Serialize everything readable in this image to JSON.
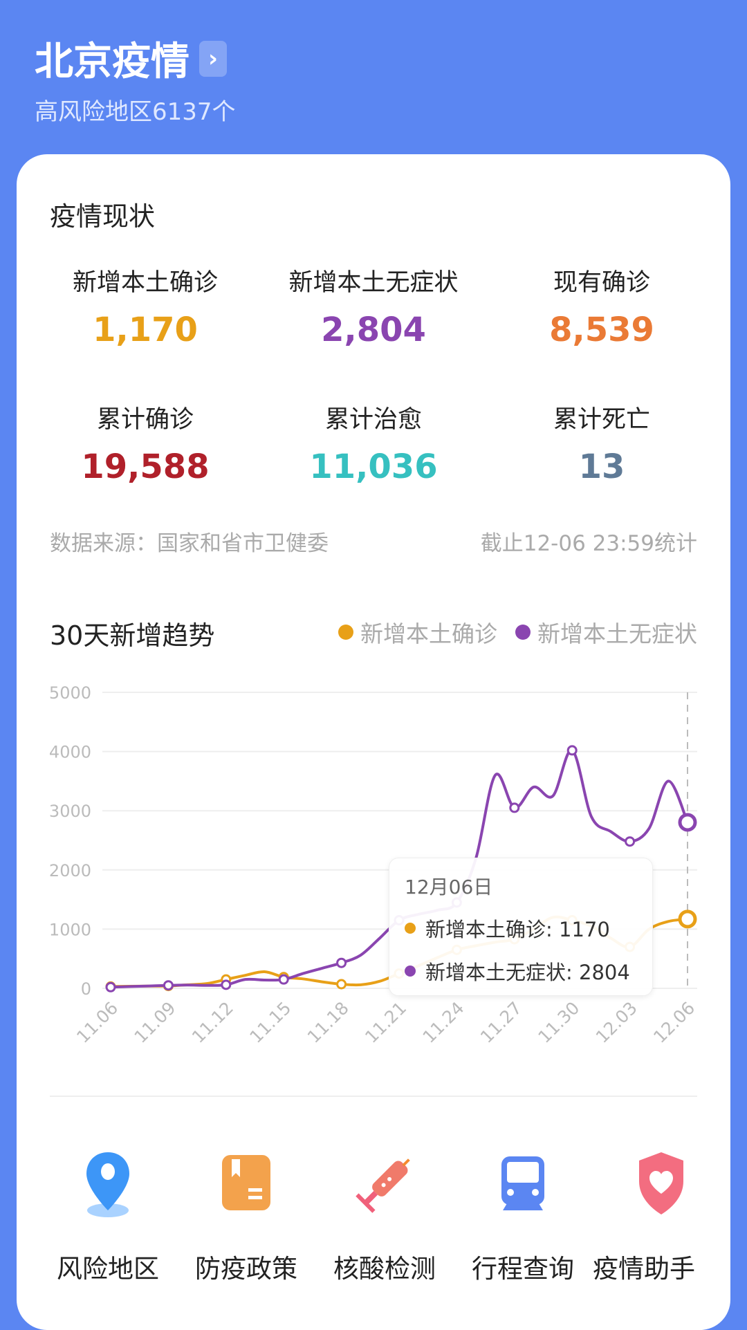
{
  "header": {
    "title": "北京疫情",
    "subtitle": "高风险地区6137个",
    "chevron_icon": "chevron-right-icon"
  },
  "status": {
    "title": "疫情现状",
    "stats": [
      {
        "label": "新增本土确诊",
        "value": "1,170",
        "color": "#e8a018"
      },
      {
        "label": "新增本土无症状",
        "value": "2,804",
        "color": "#8a45b0"
      },
      {
        "label": "现有确诊",
        "value": "8,539",
        "color": "#ea7a35"
      },
      {
        "label": "累计确诊",
        "value": "19,588",
        "color": "#b0202a"
      },
      {
        "label": "累计治愈",
        "value": "11,036",
        "color": "#36c0c0"
      },
      {
        "label": "累计死亡",
        "value": "13",
        "color": "#5f7a96"
      }
    ],
    "source": "数据来源：国家和省市卫健委",
    "updated": "截止12-06 23:59统计"
  },
  "chart_data": {
    "type": "line",
    "title": "30天新增趋势",
    "ylim": [
      0,
      5000
    ],
    "yticks": [
      "0",
      "1000",
      "2000",
      "3000",
      "4000",
      "5000"
    ],
    "xticks": [
      "11.06",
      "11.09",
      "11.12",
      "11.15",
      "11.18",
      "11.21",
      "11.24",
      "11.27",
      "11.30",
      "12.03",
      "12.06"
    ],
    "x": [
      "11.06",
      "11.07",
      "11.08",
      "11.09",
      "11.10",
      "11.11",
      "11.12",
      "11.13",
      "11.14",
      "11.15",
      "11.16",
      "11.17",
      "11.18",
      "11.19",
      "11.20",
      "11.21",
      "11.22",
      "11.23",
      "11.24",
      "11.25",
      "11.26",
      "11.27",
      "11.28",
      "11.29",
      "11.30",
      "12.01",
      "12.02",
      "12.03",
      "12.04",
      "12.05",
      "12.06"
    ],
    "legend_position": "top-right",
    "grid": true,
    "series": [
      {
        "name": "新增本土确诊",
        "color": "#e8a018",
        "values": [
          30,
          35,
          38,
          40,
          60,
          80,
          150,
          220,
          280,
          190,
          160,
          110,
          70,
          60,
          120,
          250,
          380,
          520,
          650,
          720,
          780,
          830,
          1000,
          1200,
          1150,
          1050,
          850,
          700,
          1000,
          1130,
          1170
        ]
      },
      {
        "name": "新增本土无症状",
        "color": "#8a45b0",
        "values": [
          20,
          30,
          40,
          50,
          55,
          50,
          60,
          150,
          140,
          150,
          250,
          340,
          430,
          560,
          850,
          1150,
          1250,
          1320,
          1450,
          2200,
          3600,
          3050,
          3400,
          3250,
          4020,
          2900,
          2650,
          2480,
          2700,
          3500,
          2804
        ]
      }
    ],
    "tooltip": {
      "date": "12月06日",
      "rows": [
        "新增本土确诊: 1170",
        "新增本土无症状: 2804"
      ]
    }
  },
  "tools": [
    {
      "label": "风险地区",
      "icon": "location-pin-icon"
    },
    {
      "label": "防疫政策",
      "icon": "policy-document-icon"
    },
    {
      "label": "核酸检测",
      "icon": "syringe-icon"
    },
    {
      "label": "行程查询",
      "icon": "train-icon"
    },
    {
      "label": "疫情助手",
      "icon": "heart-shield-icon"
    }
  ]
}
